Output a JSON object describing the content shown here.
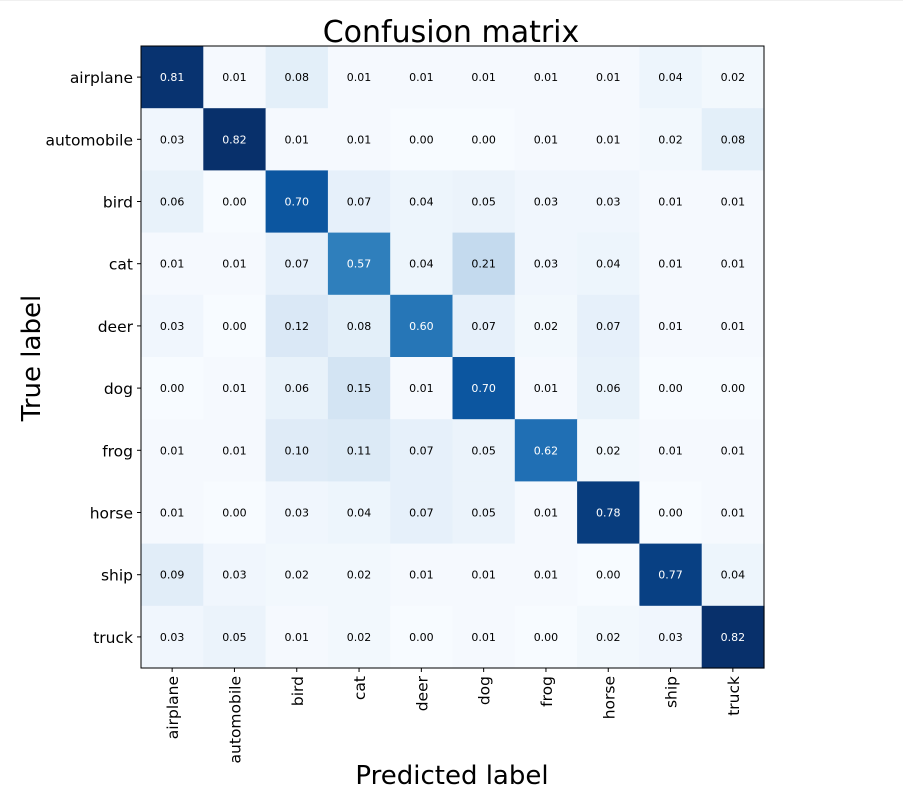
{
  "chart_data": {
    "type": "heatmap",
    "title": "Confusion matrix",
    "xlabel": "Predicted label",
    "ylabel": "True label",
    "colormap": "Blues",
    "x_categories": [
      "airplane",
      "automobile",
      "bird",
      "cat",
      "deer",
      "dog",
      "frog",
      "horse",
      "ship",
      "truck"
    ],
    "y_categories": [
      "airplane",
      "automobile",
      "bird",
      "cat",
      "deer",
      "dog",
      "frog",
      "horse",
      "ship",
      "truck"
    ],
    "values": [
      [
        0.81,
        0.01,
        0.08,
        0.01,
        0.01,
        0.01,
        0.01,
        0.01,
        0.04,
        0.02
      ],
      [
        0.03,
        0.82,
        0.01,
        0.01,
        0.0,
        0.0,
        0.01,
        0.01,
        0.02,
        0.08
      ],
      [
        0.06,
        0.0,
        0.7,
        0.07,
        0.04,
        0.05,
        0.03,
        0.03,
        0.01,
        0.01
      ],
      [
        0.01,
        0.01,
        0.07,
        0.57,
        0.04,
        0.21,
        0.03,
        0.04,
        0.01,
        0.01
      ],
      [
        0.03,
        0.0,
        0.12,
        0.08,
        0.6,
        0.07,
        0.02,
        0.07,
        0.01,
        0.01
      ],
      [
        0.0,
        0.01,
        0.06,
        0.15,
        0.01,
        0.7,
        0.01,
        0.06,
        0.0,
        0.0
      ],
      [
        0.01,
        0.01,
        0.1,
        0.11,
        0.07,
        0.05,
        0.62,
        0.02,
        0.01,
        0.01
      ],
      [
        0.01,
        0.0,
        0.03,
        0.04,
        0.07,
        0.05,
        0.01,
        0.78,
        0.0,
        0.01
      ],
      [
        0.09,
        0.03,
        0.02,
        0.02,
        0.01,
        0.01,
        0.01,
        0.0,
        0.77,
        0.04
      ],
      [
        0.03,
        0.05,
        0.01,
        0.02,
        0.0,
        0.01,
        0.0,
        0.02,
        0.03,
        0.82
      ]
    ],
    "value_range": [
      0,
      0.82
    ],
    "x_tick_rotation": "vertical",
    "grid": false,
    "legend": "none"
  }
}
